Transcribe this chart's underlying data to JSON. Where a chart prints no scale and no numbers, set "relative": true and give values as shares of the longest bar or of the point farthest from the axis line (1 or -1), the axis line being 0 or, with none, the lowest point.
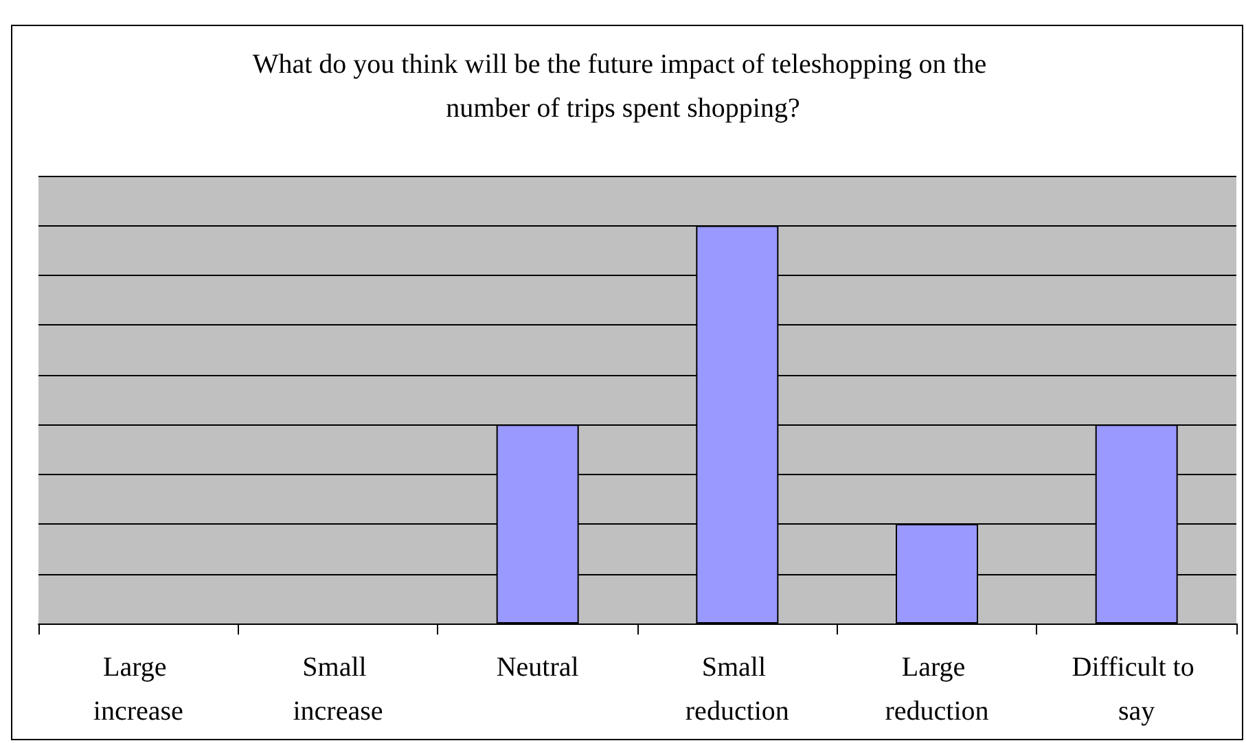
{
  "chart_data": {
    "type": "bar",
    "title": "What do you think will be the future impact of teleshopping on the number of trips spent shopping?",
    "categories": [
      "Large increase",
      "Small increase",
      "Neutral",
      "Small reduction",
      "Large reduction",
      "Difficult to say"
    ],
    "values": [
      0,
      0,
      0.5,
      1,
      0.25,
      0.5
    ],
    "color": "#9999ff",
    "relative": true,
    "grid": "y"
  }
}
